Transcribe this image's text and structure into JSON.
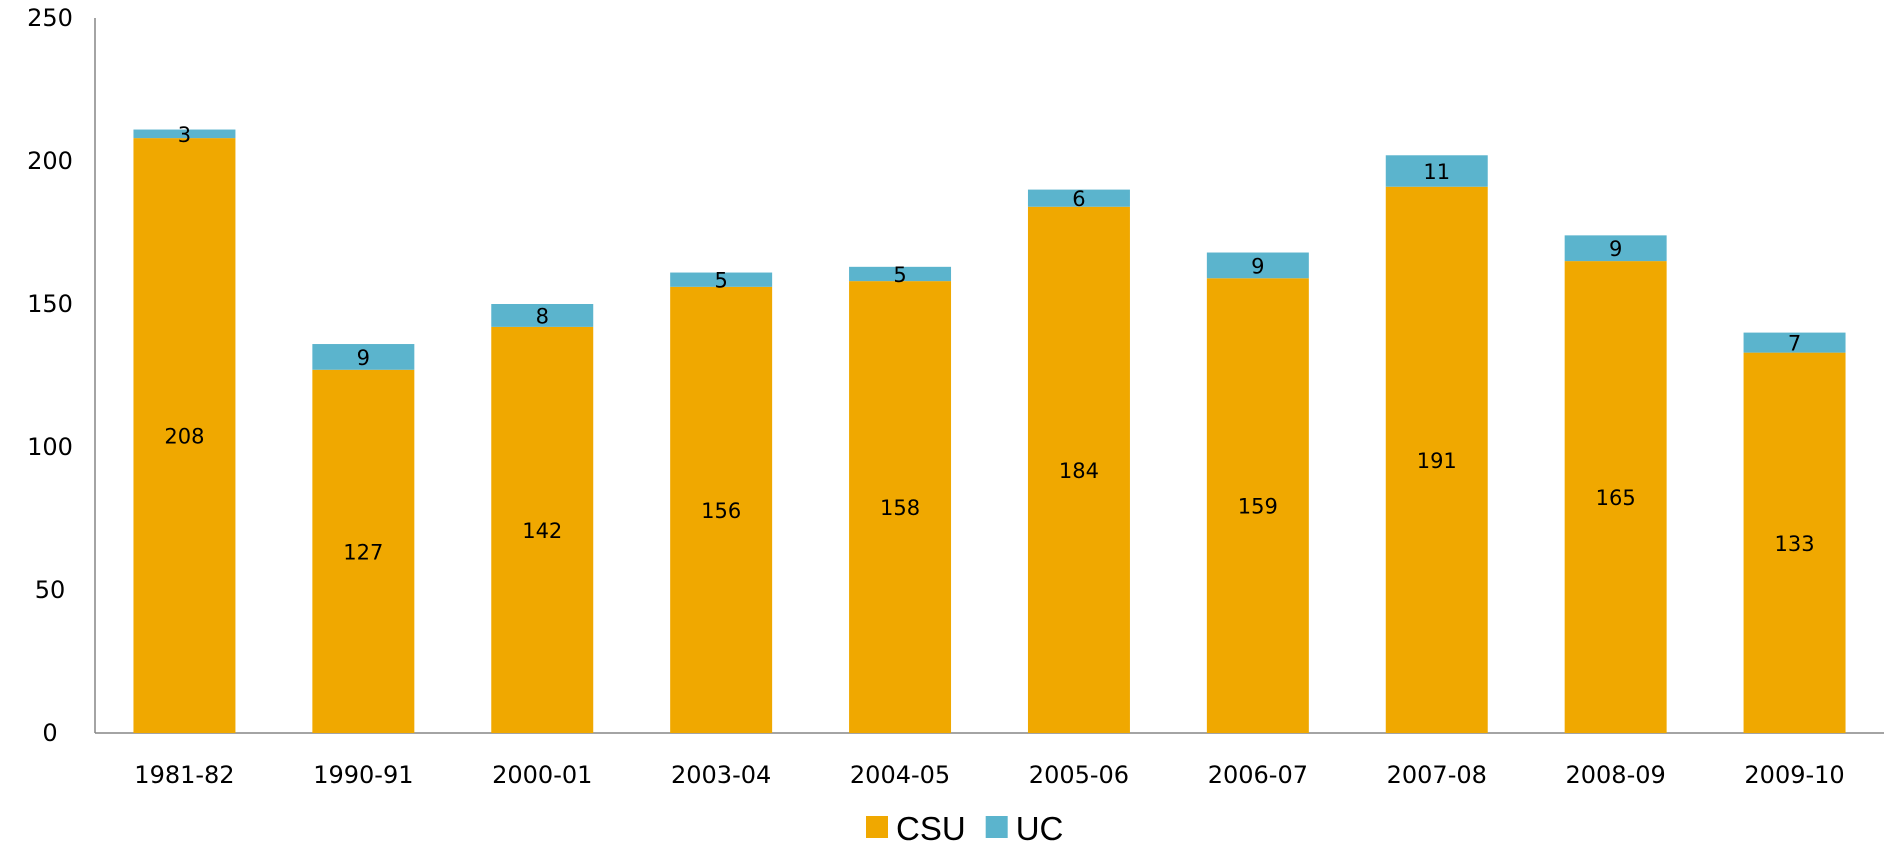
{
  "chart_data": {
    "type": "bar",
    "stacked": true,
    "categories": [
      "1981-82",
      "1990-91",
      "2000-01",
      "2003-04",
      "2004-05",
      "2005-06",
      "2006-07",
      "2007-08",
      "2008-09",
      "2009-10"
    ],
    "series": [
      {
        "name": "CSU",
        "color": "#F0A800",
        "values": [
          208,
          127,
          142,
          156,
          158,
          184,
          159,
          191,
          165,
          133
        ]
      },
      {
        "name": "UC",
        "color": "#5BB4CD",
        "values": [
          3,
          9,
          8,
          5,
          5,
          6,
          9,
          11,
          9,
          7
        ]
      }
    ],
    "y_ticks": [
      "0",
      "50",
      "100",
      "150",
      "200",
      "250"
    ],
    "ylim": [
      0,
      250
    ],
    "grid": false,
    "legend": "bottom-center",
    "title": "",
    "xlabel": "",
    "ylabel": ""
  }
}
